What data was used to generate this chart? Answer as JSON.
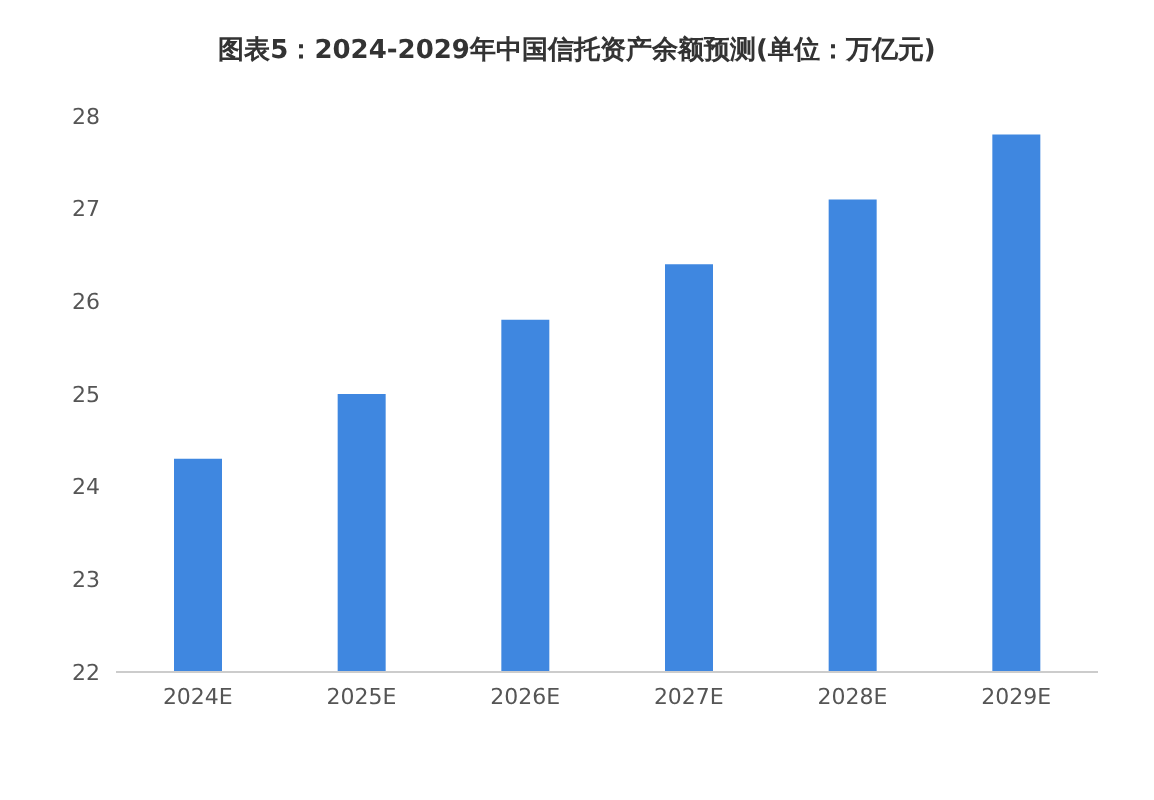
{
  "chart_data": {
    "type": "bar",
    "title": "图表5：2024-2029年中国信托资产余额预测(单位：万亿元)",
    "categories": [
      "2024E",
      "2025E",
      "2026E",
      "2027E",
      "2028E",
      "2029E"
    ],
    "values": [
      24.3,
      25.0,
      25.8,
      26.4,
      27.1,
      27.8
    ],
    "color": "#3f87e0",
    "ylim": [
      22,
      28
    ],
    "yticks": [
      22,
      23,
      24,
      25,
      26,
      27,
      28
    ],
    "grid": false
  }
}
